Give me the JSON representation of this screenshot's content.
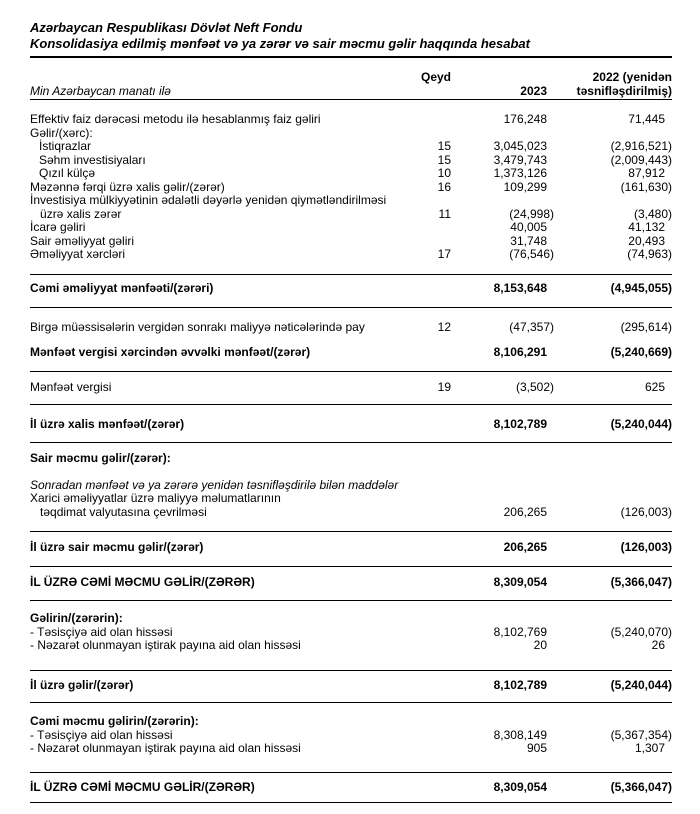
{
  "document": {
    "title_line1": "Azərbaycan Respublikası Dövlət Neft Fondu",
    "title_line2": "Konsolidasiya edilmiş mənfəət və ya zərər və sair məcmu gəlir haqqında hesabat"
  },
  "table": {
    "unit_label": "Min Azərbaycan manatı ilə",
    "col_note": "Qeyd",
    "col_2023": "2023",
    "col_2022": "2022 (yenidən təsnifləşdirilmiş)",
    "rows": [
      {
        "label": "Effektiv faiz dərəcəsi metodu ilə hesablanmış faiz gəliri",
        "note": "",
        "y2023": "176,248",
        "y2022": "71,445"
      },
      {
        "label": "Gəlir/(xərc):",
        "note": "",
        "y2023": "",
        "y2022": ""
      },
      {
        "label": "İstiqrazlar",
        "note": "15",
        "y2023": "3,045,023",
        "y2022": "(2,916,521)"
      },
      {
        "label": "Səhm investisiyaları",
        "note": "15",
        "y2023": "3,479,743",
        "y2022": "(2,009,443)"
      },
      {
        "label": "Qızıl külçə",
        "note": "10",
        "y2023": "1,373,126",
        "y2022": "87,912"
      },
      {
        "label": "Məzənnə fərqi üzrə xalis gəlir/(zərər)",
        "note": "16",
        "y2023": "109,299",
        "y2022": "(161,630)"
      },
      {
        "label": "İnvestisiya mülkiyyətinin ədalətli dəyərlə yenidən qiymətləndirilməsi\n   üzrə xalis zərər",
        "note": "11",
        "y2023": "(24,998)",
        "y2022": "(3,480)"
      },
      {
        "label": "İcarə gəliri",
        "note": "",
        "y2023": "40,005",
        "y2022": "41,132"
      },
      {
        "label": "Sair əməliyyat gəliri",
        "note": "",
        "y2023": "31,748",
        "y2022": "20,493"
      },
      {
        "label": "Əməliyyat xərcləri",
        "note": "17",
        "y2023": "(76,546)",
        "y2022": "(74,963)"
      },
      {
        "label": "Cəmi əməliyyat mənfəəti/(zərəri)",
        "note": "",
        "y2023": "8,153,648",
        "y2022": "(4,945,055)"
      },
      {
        "label": "Birgə müəssisələrin vergidən sonrakı maliyyə nəticələrində pay",
        "note": "12",
        "y2023": "(47,357)",
        "y2022": "(295,614)"
      },
      {
        "label": "Mənfəət vergisi xərcindən əvvəlki mənfəət/(zərər)",
        "note": "",
        "y2023": "8,106,291",
        "y2022": "(5,240,669)"
      },
      {
        "label": "Mənfəət vergisi",
        "note": "19",
        "y2023": "(3,502)",
        "y2022": "625"
      },
      {
        "label": "İl üzrə xalis mənfəət/(zərər)",
        "note": "",
        "y2023": "8,102,789",
        "y2022": "(5,240,044)"
      },
      {
        "label": "Sair məcmu gəlir/(zərər):",
        "note": "",
        "y2023": "",
        "y2022": ""
      },
      {
        "label": "Sonradan mənfəət və ya zərərə yenidən təsnifləşdirilə bilən maddələr",
        "note": "",
        "y2023": "",
        "y2022": ""
      },
      {
        "label": "Xarici əməliyyatlar üzrə maliyyə məlumatlarının\n   təqdimat valyutasına çevrilməsi",
        "note": "",
        "y2023": "206,265",
        "y2022": "(126,003)"
      },
      {
        "label": "İl üzrə sair məcmu gəlir/(zərər)",
        "note": "",
        "y2023": "206,265",
        "y2022": "(126,003)"
      },
      {
        "label": "İL ÜZRƏ CƏMİ MƏCMU GƏLİR/(ZƏRƏR)",
        "note": "",
        "y2023": "8,309,054",
        "y2022": "(5,366,047)"
      },
      {
        "label": "Gəlirin/(zərərin):",
        "note": "",
        "y2023": "",
        "y2022": ""
      },
      {
        "label": "- Təsisçiyə aid olan hissəsi",
        "note": "",
        "y2023": "8,102,769",
        "y2022": "(5,240,070)"
      },
      {
        "label": "- Nəzarət olunmayan iştirak payına aid olan hissəsi",
        "note": "",
        "y2023": "20",
        "y2022": "26"
      },
      {
        "label": "İl üzrə gəlir/(zərər)",
        "note": "",
        "y2023": "8,102,789",
        "y2022": "(5,240,044)"
      },
      {
        "label": "Cəmi məcmu gəlirin/(zərərin):",
        "note": "",
        "y2023": "",
        "y2022": ""
      },
      {
        "label": "- Təsisçiyə aid olan hissəsi",
        "note": "",
        "y2023": "8,308,149",
        "y2022": "(5,367,354)"
      },
      {
        "label": "- Nəzarət olunmayan iştirak payına aid olan hissəsi",
        "note": "",
        "y2023": "905",
        "y2022": "1,307"
      },
      {
        "label": "İL ÜZRƏ CƏMİ MƏCMU GƏLİR/(ZƏRƏR)",
        "note": "",
        "y2023": "8,309,054",
        "y2022": "(5,366,047)"
      }
    ]
  }
}
